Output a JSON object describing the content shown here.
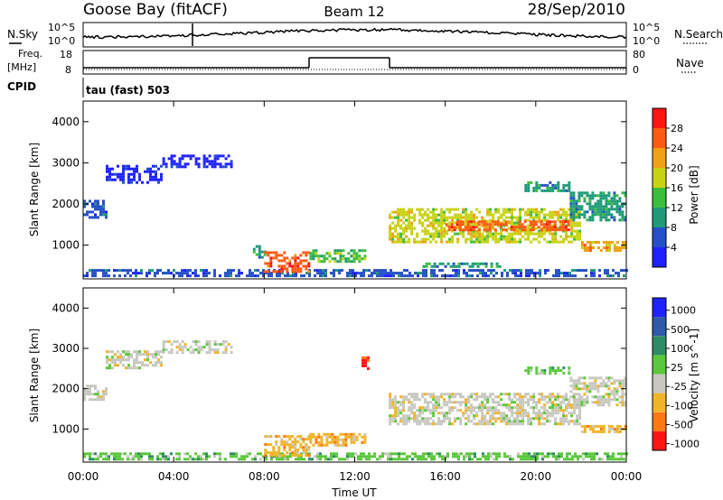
{
  "header": {
    "station": "Goose Bay (fitACF)",
    "beam": "Beam 12",
    "date": "28/Sep/2010"
  },
  "strips": {
    "nsky_label": "N.Sky",
    "nsky_ticks": [
      "10^5",
      "10^0"
    ],
    "nsearch_label": "N.Search",
    "freq_label_1": "Freq.",
    "freq_label_2": "[MHz]",
    "freq_ticks": [
      "18",
      "8"
    ],
    "nave_ticks": [
      "80",
      "0"
    ],
    "nave_label": "Nave",
    "cpid_label": "CPID",
    "cpid_value": "tau (fast) 503"
  },
  "chart_data": [
    {
      "type": "heatmap",
      "name": "power",
      "ylabel": "Slant Range [km]",
      "xlabel": "Time UT",
      "x_ticks": [
        "00:00",
        "04:00",
        "08:00",
        "12:00",
        "16:00",
        "20:00",
        "00:00"
      ],
      "x_range_hours": [
        0,
        24
      ],
      "y_ticks": [
        1000,
        2000,
        3000,
        4000
      ],
      "y_range_km": [
        180,
        4500
      ],
      "colorbar_label": "Power [dB]",
      "colorbar_ticks": [
        4,
        8,
        12,
        16,
        20,
        24,
        28
      ],
      "colorbar_colors": [
        "#1e22ff",
        "#2550c8",
        "#1e9a78",
        "#3cbe3c",
        "#c8d214",
        "#f0a014",
        "#ff5a14",
        "#ff1414"
      ],
      "regions": [
        {
          "from_h": 0.0,
          "to_h": 1.0,
          "range_km": [
            1700,
            2100
          ],
          "level": 1
        },
        {
          "from_h": 1.0,
          "to_h": 3.5,
          "range_km": [
            2500,
            2950
          ],
          "level": 0
        },
        {
          "from_h": 3.5,
          "to_h": 6.5,
          "range_km": [
            2900,
            3200
          ],
          "level": 0
        },
        {
          "from_h": 0.0,
          "to_h": 24.0,
          "range_km": [
            250,
            420
          ],
          "level": 1
        },
        {
          "from_h": 7.5,
          "to_h": 8.0,
          "range_km": [
            700,
            1000
          ],
          "level": 2
        },
        {
          "from_h": 8.0,
          "to_h": 10.0,
          "range_km": [
            350,
            850
          ],
          "level": 6
        },
        {
          "from_h": 10.0,
          "to_h": 12.5,
          "range_km": [
            600,
            900
          ],
          "level": 3
        },
        {
          "from_h": 13.5,
          "to_h": 22.0,
          "range_km": [
            1100,
            1900
          ],
          "level": 4
        },
        {
          "from_h": 16.0,
          "to_h": 21.5,
          "range_km": [
            1350,
            1600
          ],
          "level": 6
        },
        {
          "from_h": 21.5,
          "to_h": 24.0,
          "range_km": [
            1600,
            2300
          ],
          "level": 2
        },
        {
          "from_h": 22.0,
          "to_h": 24.0,
          "range_km": [
            900,
            1100
          ],
          "level": 5
        },
        {
          "from_h": 15.0,
          "to_h": 18.5,
          "range_km": [
            480,
            580
          ],
          "level": 2
        },
        {
          "from_h": 19.5,
          "to_h": 21.5,
          "range_km": [
            2350,
            2550
          ],
          "level": 2
        }
      ]
    },
    {
      "type": "heatmap",
      "name": "velocity",
      "ylabel": "Slant Range [km]",
      "xlabel": "Time UT",
      "x_ticks": [
        "00:00",
        "04:00",
        "08:00",
        "12:00",
        "16:00",
        "20:00",
        "00:00"
      ],
      "x_range_hours": [
        0,
        24
      ],
      "y_ticks": [
        1000,
        2000,
        3000,
        4000
      ],
      "y_range_km": [
        180,
        4500
      ],
      "colorbar_label": "Velocity [m s^-1]",
      "colorbar_ticks": [
        1000,
        500,
        100,
        25,
        -25,
        -100,
        -500,
        -1000
      ],
      "colorbar_colors": [
        "#1e22ff",
        "#2e5aa8",
        "#2e8c64",
        "#5ac83c",
        "#c8c8c0",
        "#f0b428",
        "#ff7814",
        "#ff1414"
      ],
      "regions": [
        {
          "from_h": 0.0,
          "to_h": 1.0,
          "range_km": [
            1700,
            2100
          ],
          "level": 4
        },
        {
          "from_h": 1.0,
          "to_h": 3.5,
          "range_km": [
            2500,
            2950
          ],
          "level": 4
        },
        {
          "from_h": 3.5,
          "to_h": 6.5,
          "range_km": [
            2900,
            3200
          ],
          "level": 4
        },
        {
          "from_h": 0.0,
          "to_h": 24.0,
          "range_km": [
            250,
            420
          ],
          "level": 3
        },
        {
          "from_h": 8.0,
          "to_h": 10.0,
          "range_km": [
            350,
            850
          ],
          "level": 5
        },
        {
          "from_h": 10.0,
          "to_h": 12.5,
          "range_km": [
            600,
            900
          ],
          "level": 5
        },
        {
          "from_h": 13.5,
          "to_h": 22.0,
          "range_km": [
            1100,
            1900
          ],
          "level": 4
        },
        {
          "from_h": 21.5,
          "to_h": 24.0,
          "range_km": [
            1600,
            2300
          ],
          "level": 4
        },
        {
          "from_h": 22.0,
          "to_h": 24.0,
          "range_km": [
            900,
            1100
          ],
          "level": 5
        },
        {
          "from_h": 19.5,
          "to_h": 21.5,
          "range_km": [
            2350,
            2550
          ],
          "level": 3
        },
        {
          "from_h": 12.3,
          "to_h": 12.6,
          "range_km": [
            2500,
            2800
          ],
          "level": 7
        }
      ]
    }
  ]
}
